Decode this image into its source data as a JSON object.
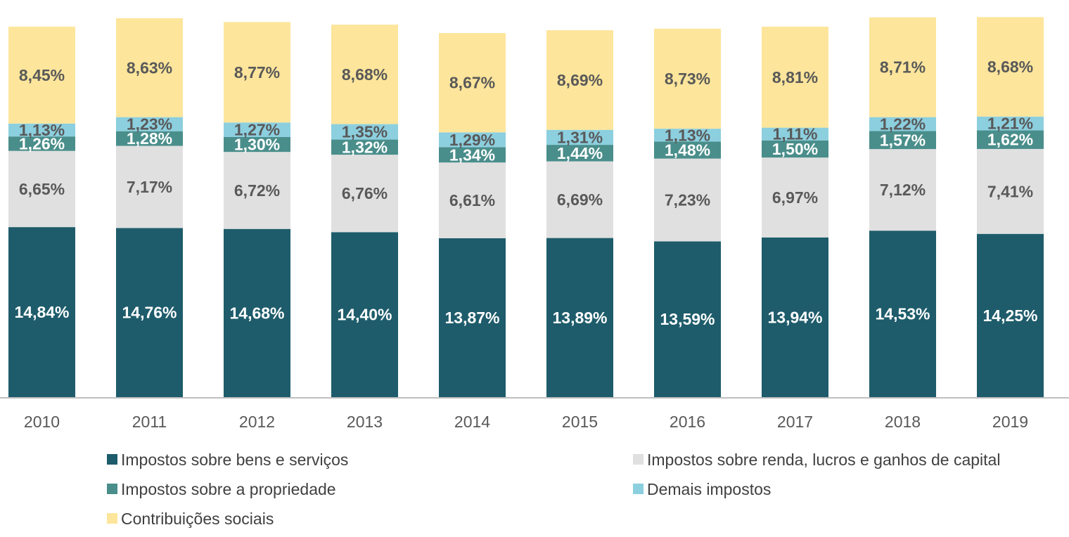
{
  "chart_data": {
    "type": "bar",
    "stacked": true,
    "categories": [
      "2010",
      "2011",
      "2012",
      "2013",
      "2014",
      "2015",
      "2016",
      "2017",
      "2018",
      "2019"
    ],
    "series": [
      {
        "name": "Impostos sobre bens e serviços",
        "color": "#1e5c6b",
        "values": [
          14.84,
          14.76,
          14.68,
          14.4,
          13.87,
          13.89,
          13.59,
          13.94,
          14.53,
          14.25
        ],
        "labels": [
          "14,84%",
          "14,76%",
          "14,68%",
          "14,40%",
          "13,87%",
          "13,89%",
          "13,59%",
          "13,94%",
          "14,53%",
          "14,25%"
        ],
        "label_color": "#ffffff"
      },
      {
        "name": "Impostos sobre renda, lucros e ganhos de capital",
        "color": "#e0e0e0",
        "values": [
          6.65,
          7.17,
          6.72,
          6.76,
          6.61,
          6.69,
          7.23,
          6.97,
          7.12,
          7.41
        ],
        "labels": [
          "6,65%",
          "7,17%",
          "6,72%",
          "6,76%",
          "6,61%",
          "6,69%",
          "7,23%",
          "6,97%",
          "7,12%",
          "7,41%"
        ],
        "label_color": "#595959"
      },
      {
        "name": "Impostos sobre a propriedade",
        "color": "#4a8e8b",
        "values": [
          1.26,
          1.28,
          1.3,
          1.32,
          1.34,
          1.44,
          1.48,
          1.5,
          1.57,
          1.62
        ],
        "labels": [
          "1,26%",
          "1,28%",
          "1,30%",
          "1,32%",
          "1,34%",
          "1,44%",
          "1,48%",
          "1,50%",
          "1,57%",
          "1,62%"
        ],
        "label_color": "#ffffff"
      },
      {
        "name": "Demais impostos",
        "color": "#8ccfdf",
        "values": [
          1.13,
          1.23,
          1.27,
          1.35,
          1.29,
          1.31,
          1.13,
          1.11,
          1.22,
          1.21
        ],
        "labels": [
          "1,13%",
          "1,23%",
          "1,27%",
          "1,35%",
          "1,29%",
          "1,31%",
          "1,13%",
          "1,11%",
          "1,22%",
          "1,21%"
        ],
        "label_color": "#595959"
      },
      {
        "name": "Contribuições sociais",
        "color": "#fde59b",
        "values": [
          8.45,
          8.63,
          8.77,
          8.68,
          8.67,
          8.69,
          8.73,
          8.81,
          8.71,
          8.68
        ],
        "labels": [
          "8,45%",
          "8,63%",
          "8,77%",
          "8,68%",
          "8,67%",
          "8,69%",
          "8,73%",
          "8,81%",
          "8,71%",
          "8,68%"
        ],
        "label_color": "#595959"
      }
    ],
    "legend_order": [
      0,
      1,
      2,
      3,
      4
    ],
    "legend_position": "bottom",
    "axis_color": "#bfbfbf",
    "grid": false
  }
}
